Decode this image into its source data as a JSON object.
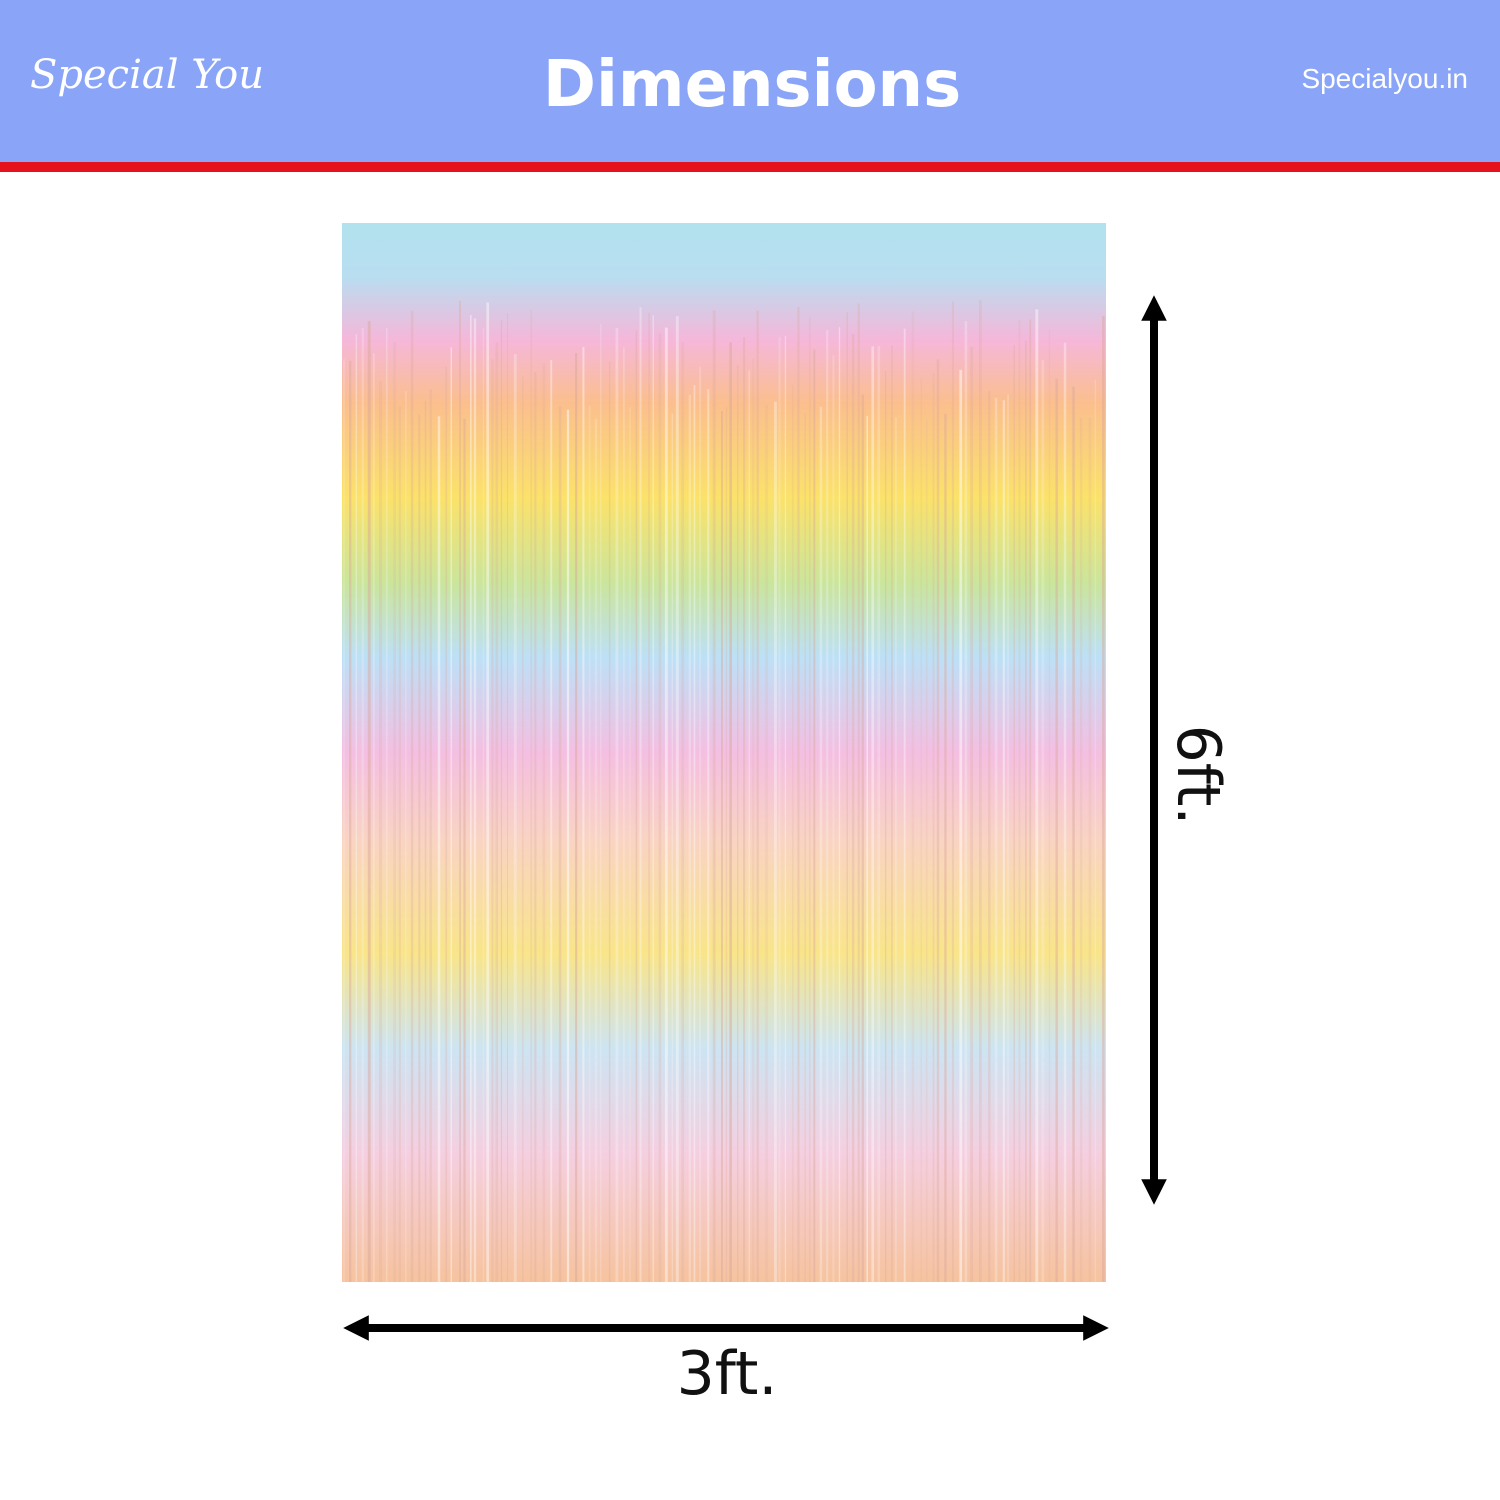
{
  "header": {
    "logo": "Special You",
    "title": "Dimensions",
    "site": "Specialyou.in"
  },
  "dimensions": {
    "width": "3ft.",
    "height": "6ft."
  }
}
